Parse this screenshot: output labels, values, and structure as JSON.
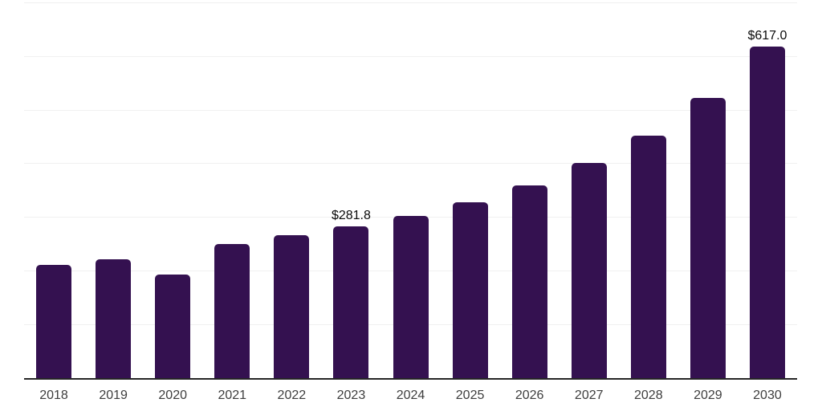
{
  "chart_data": {
    "type": "bar",
    "title": "",
    "xlabel": "",
    "ylabel": "",
    "categories": [
      "2018",
      "2019",
      "2020",
      "2021",
      "2022",
      "2023",
      "2024",
      "2025",
      "2026",
      "2027",
      "2028",
      "2029",
      "2030"
    ],
    "values": [
      210.2,
      221.0,
      192.8,
      248.6,
      265.4,
      281.8,
      301.5,
      327.5,
      359.2,
      400.1,
      451.9,
      522.4,
      617.0
    ],
    "data_labels": [
      "",
      "",
      "",
      "",
      "",
      "$281.8",
      "",
      "",
      "",
      "",
      "",
      "",
      "$617.0"
    ],
    "ylim": [
      0,
      700
    ],
    "gridline_step": 100,
    "grid": true,
    "legend": false,
    "y_axis_labels_visible": false,
    "colors": {
      "bar": "#341150",
      "axis_line": "#262626",
      "gridline": "#f0f0f0",
      "tick_label": "#3d3d3d",
      "data_label": "#0a0a0a",
      "background": "#ffffff"
    }
  }
}
